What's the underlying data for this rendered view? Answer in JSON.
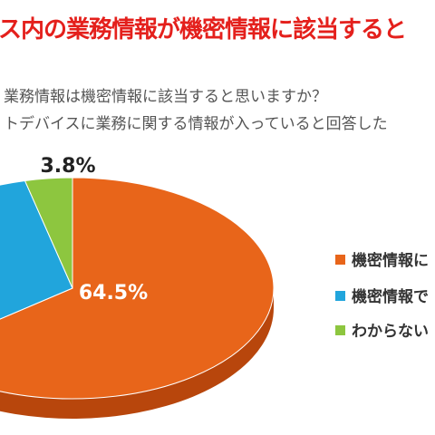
{
  "title": "ス内の業務情報が機密情報に該当すると",
  "subtitle_line1": "業務情報は機密情報に該当すると思いますか？",
  "subtitle_line2": "トデバイスに業務に関する情報が入っていると回答した",
  "legend": [
    {
      "label": "機密情報に",
      "color": "#e8651a"
    },
    {
      "label": "機密情報で",
      "color": "#21a5dc"
    },
    {
      "label": "わからない",
      "color": "#8dc63f"
    }
  ],
  "chart_data": {
    "type": "pie",
    "slices": [
      {
        "value": 64.5,
        "label": "64.5%",
        "color": "#e8651a",
        "side": "#b8460c"
      },
      {
        "value": 31.7,
        "label": "",
        "color": "#21a5dc",
        "side": "#1478a6"
      },
      {
        "value": 3.8,
        "label": "3.8%",
        "color": "#8dc63f",
        "side": "#5e9127"
      }
    ],
    "legend_position": "right"
  }
}
